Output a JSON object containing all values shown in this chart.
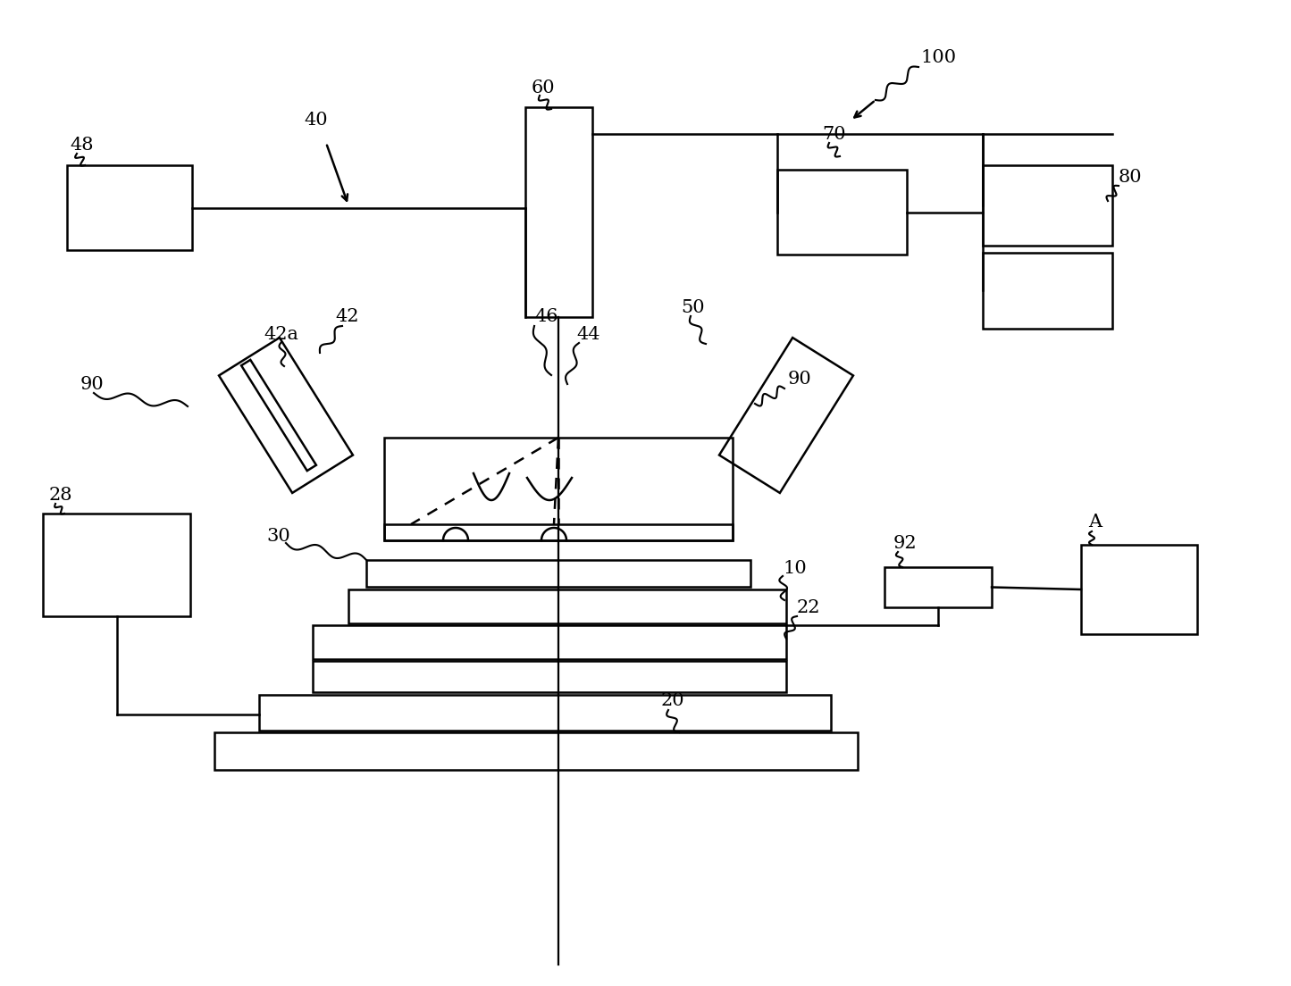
{
  "bg_color": "#ffffff",
  "lc": "#000000",
  "lw": 1.8,
  "thin_lw": 1.2
}
